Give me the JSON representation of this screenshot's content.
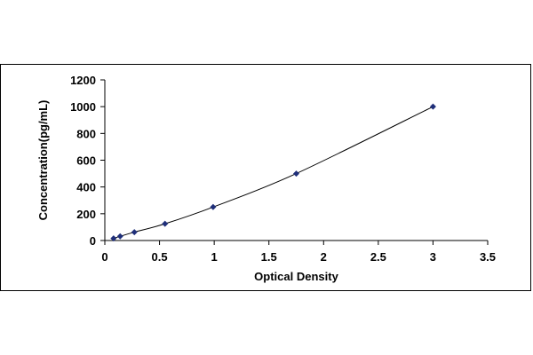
{
  "chart_data": {
    "type": "scatter",
    "title": "",
    "xlabel": "Optical Density",
    "ylabel": "Concentration(pg/mL)",
    "xlim": [
      0,
      3.5
    ],
    "ylim": [
      0,
      1200
    ],
    "x_ticks": [
      0,
      0.5,
      1,
      1.5,
      2,
      2.5,
      3,
      3.5
    ],
    "x_tick_labels": [
      "0",
      "0.5",
      "1",
      "1.5",
      "2",
      "2.5",
      "3",
      "3.5"
    ],
    "y_ticks": [
      0,
      200,
      400,
      600,
      800,
      1000,
      1200
    ],
    "y_tick_labels": [
      "0",
      "200",
      "400",
      "600",
      "800",
      "1000",
      "1200"
    ],
    "grid": false,
    "legend": "none",
    "series": [
      {
        "x": [
          0.08,
          0.14,
          0.27,
          0.55,
          0.99,
          1.75,
          3.0
        ],
        "y": [
          15.6,
          31.2,
          62.5,
          125,
          250,
          500,
          1000
        ],
        "color": "#1f2f7a",
        "marker": "diamond",
        "trendline": "smooth",
        "trendline_color": "#000000"
      }
    ]
  }
}
